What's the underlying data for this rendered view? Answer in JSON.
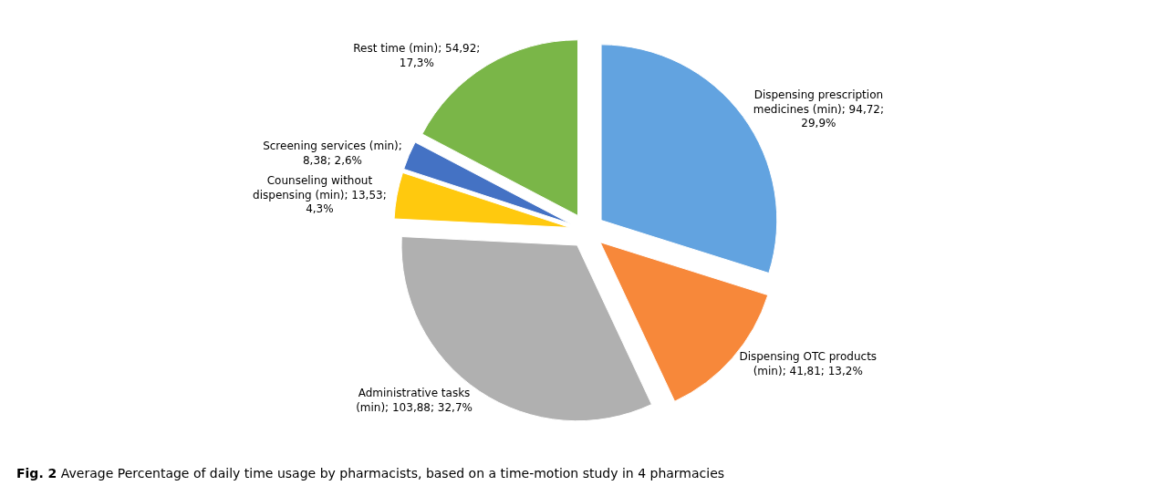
{
  "chart_data": {
    "type": "pie",
    "categories": [
      "Dispensing prescription medicines (min); 94,72; 29,9%",
      "Dispensing OTC products (min); 41,81; 13,2%",
      "Administrative tasks (min); 103,88; 32,7%",
      "Counseling without dispensing (min); 13,53; 4,3%",
      "Screening services (min); 8,38; 2,6%",
      "Rest time (min); 54,92; 17,3%"
    ],
    "values": [
      94.72,
      41.81,
      103.88,
      13.53,
      8.38,
      54.92
    ],
    "colors": [
      "#62a3e0",
      "#f7883a",
      "#b0b0b0",
      "#ffc90e",
      "#4472c4",
      "#7ab648"
    ],
    "annotations": [
      "Fig. 2",
      "Average Percentage of daily time usage by pharmacists, based on a time-motion study in 4 pharmacies"
    ],
    "legend": false
  }
}
